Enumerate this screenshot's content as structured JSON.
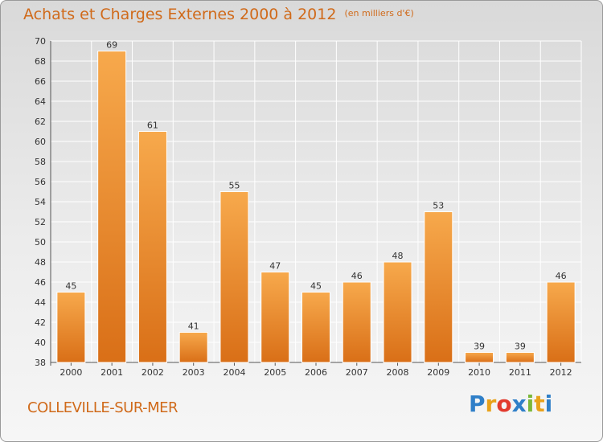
{
  "header": {
    "title": "Achats et Charges Externes 2000 à 2012",
    "unit": "(en milliers d'€)"
  },
  "footer": {
    "city": "COLLEVILLE-SUR-MER",
    "logo_letters": [
      "P",
      "r",
      "o",
      "x",
      "i",
      "t",
      "i"
    ],
    "logo_colors": [
      "#2f7fc8",
      "#e8a21b",
      "#e23b2e",
      "#2f7fc8",
      "#7bb83a",
      "#e8a21b",
      "#2f7fc8"
    ]
  },
  "colors": {
    "bar_top": "#f7a94c",
    "bar_bottom": "#d96f17",
    "text_accent": "#d06a1a"
  },
  "chart_data": {
    "type": "bar",
    "title": "Achats et Charges Externes 2000 à 2012",
    "subtitle": "(en milliers d'€)",
    "categories": [
      "2000",
      "2001",
      "2002",
      "2003",
      "2004",
      "2005",
      "2006",
      "2007",
      "2008",
      "2009",
      "2010",
      "2011",
      "2012"
    ],
    "values": [
      45,
      69,
      61,
      41,
      55,
      47,
      45,
      46,
      48,
      53,
      39,
      39,
      46
    ],
    "ylim": [
      38,
      70
    ],
    "yticks": [
      38,
      40,
      42,
      44,
      46,
      48,
      50,
      52,
      54,
      56,
      58,
      60,
      62,
      64,
      66,
      68,
      70
    ],
    "grid": true
  }
}
